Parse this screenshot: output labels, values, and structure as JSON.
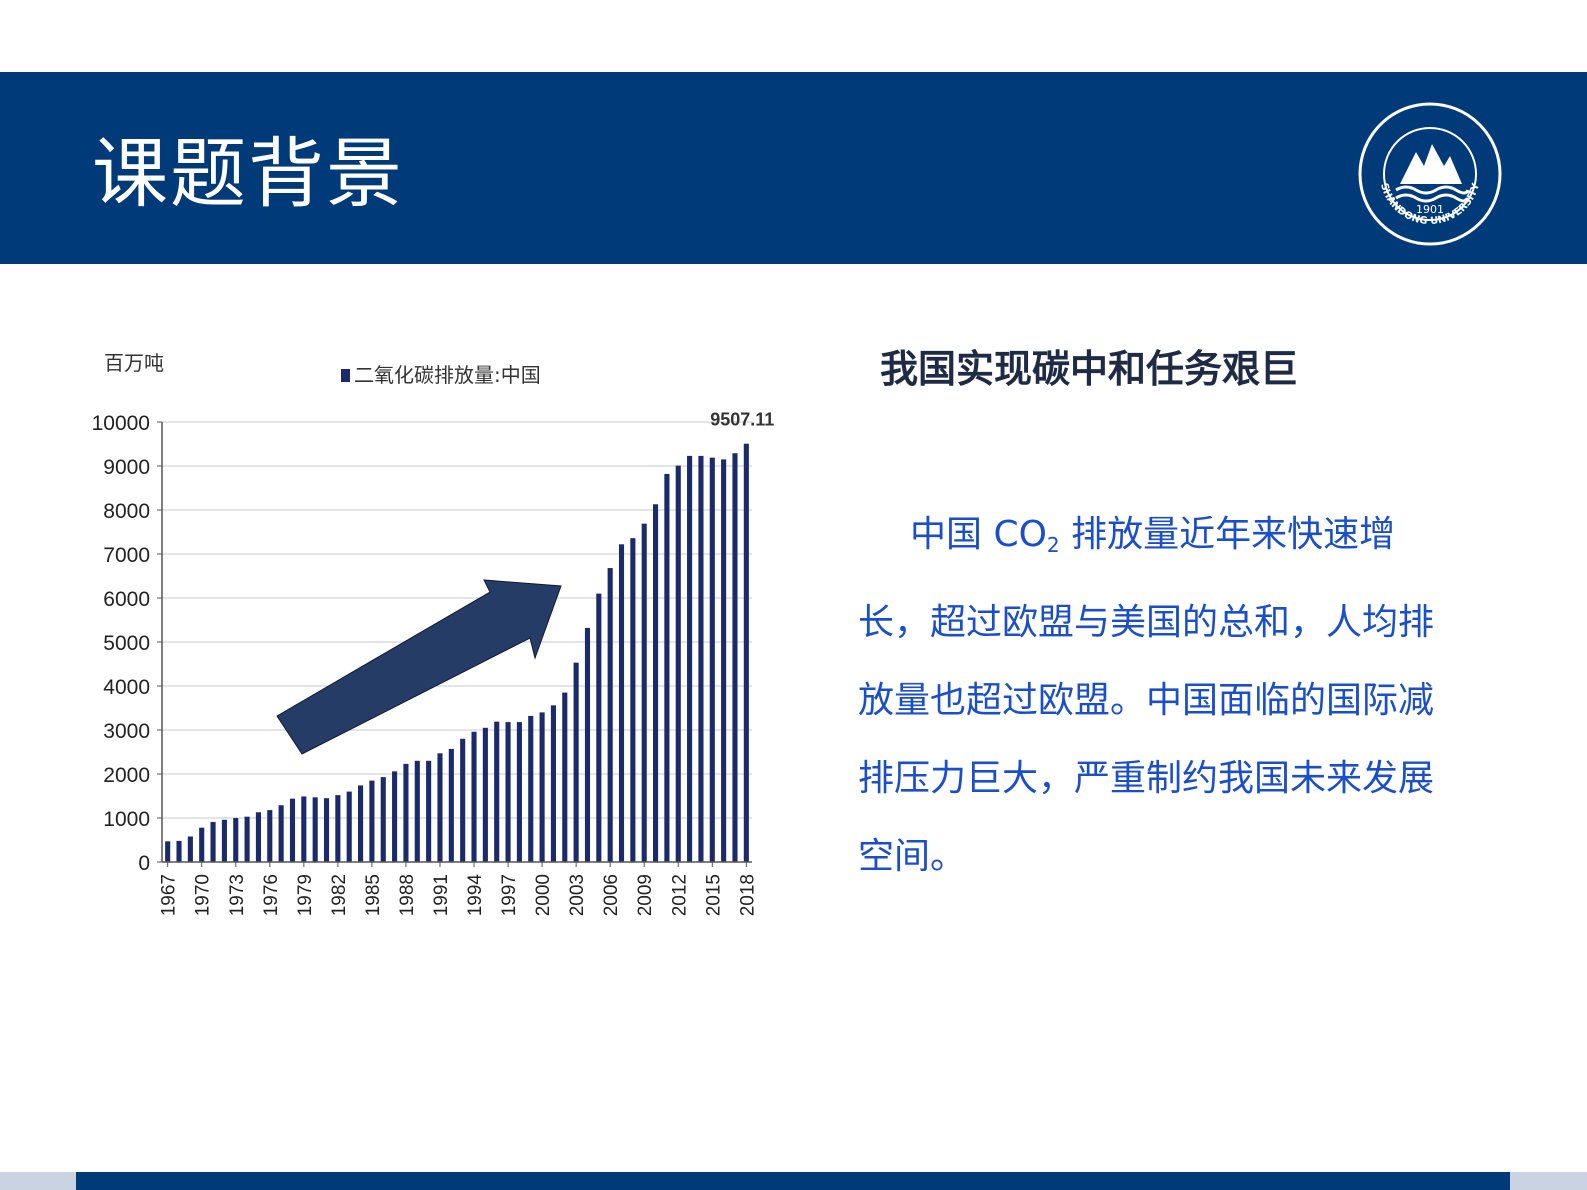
{
  "slide": {
    "title": "课题背景",
    "subheading": "我国实现碳中和任务艰巨",
    "paragraph": {
      "before": "中国 CO",
      "sub": "2",
      "after": " 排放量近年来快速增长，超过欧盟与美国的总和，人均排放量也超过欧盟。中国面临的国际减排压力巨大，严重制约我国未来发展空间。"
    }
  },
  "logo": {
    "text_year": "1901",
    "text_name": "SHANDONG UNIVERSITY"
  },
  "colors": {
    "banner": "#003a78",
    "bar": "#1b2a6b",
    "arrow": "#253d66",
    "paragraph": "#1a4fc9"
  },
  "chart_data": {
    "type": "bar",
    "unit_label": "百万吨",
    "legend": "二氧化碳排放量:中国",
    "ylim": [
      0,
      10000
    ],
    "yticks": [
      0,
      1000,
      2000,
      3000,
      4000,
      5000,
      6000,
      7000,
      8000,
      9000,
      10000
    ],
    "xtick_labels": [
      "1967",
      "1970",
      "1973",
      "1976",
      "1979",
      "1982",
      "1985",
      "1988",
      "1991",
      "1994",
      "1997",
      "2000",
      "2003",
      "2006",
      "2009",
      "2012",
      "2015",
      "2018"
    ],
    "annotation": "9507.11",
    "categories": [
      "1967",
      "1968",
      "1969",
      "1970",
      "1971",
      "1972",
      "1973",
      "1974",
      "1975",
      "1976",
      "1977",
      "1978",
      "1979",
      "1980",
      "1981",
      "1982",
      "1983",
      "1984",
      "1985",
      "1986",
      "1987",
      "1988",
      "1989",
      "1990",
      "1991",
      "1992",
      "1993",
      "1994",
      "1995",
      "1996",
      "1997",
      "1998",
      "1999",
      "2000",
      "2001",
      "2002",
      "2003",
      "2004",
      "2005",
      "2006",
      "2007",
      "2008",
      "2009",
      "2010",
      "2011",
      "2012",
      "2013",
      "2014",
      "2015",
      "2016",
      "2017",
      "2018"
    ],
    "values": [
      470,
      480,
      580,
      780,
      910,
      960,
      1000,
      1030,
      1130,
      1180,
      1290,
      1440,
      1490,
      1470,
      1450,
      1520,
      1600,
      1740,
      1850,
      1930,
      2060,
      2230,
      2300,
      2300,
      2470,
      2570,
      2800,
      2960,
      3050,
      3190,
      3180,
      3180,
      3320,
      3400,
      3560,
      3850,
      4530,
      5320,
      6100,
      6680,
      7220,
      7360,
      7690,
      8130,
      8820,
      9010,
      9230,
      9230,
      9190,
      9150,
      9290,
      9507.11
    ],
    "grid": true,
    "legend_placement": "top-center"
  }
}
